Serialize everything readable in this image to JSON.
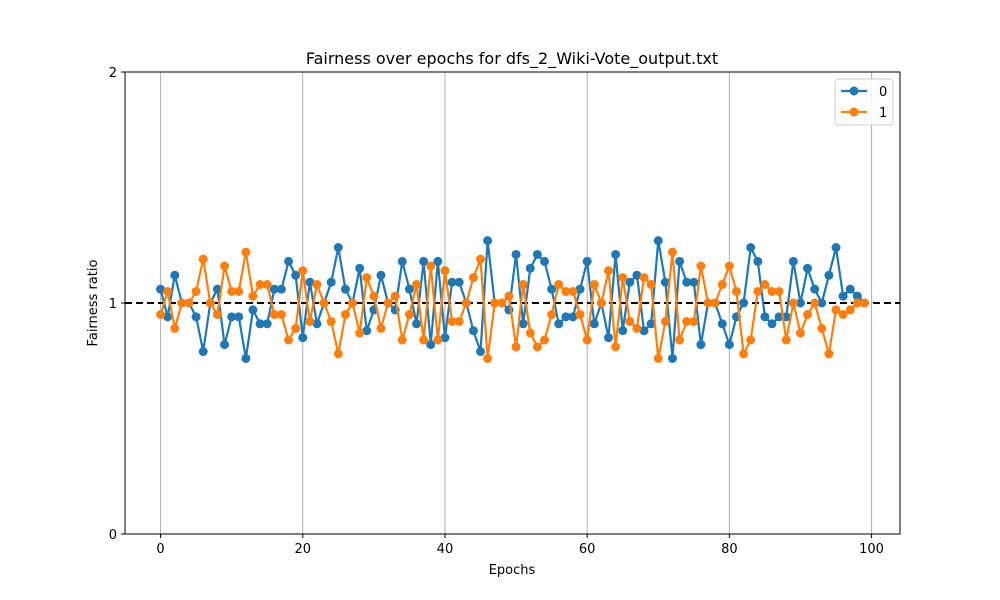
{
  "chart_data": {
    "type": "line",
    "title": "Fairness over epochs for dfs_2_Wiki-Vote_output.txt",
    "xlabel": "Epochs",
    "ylabel": "Fairness ratio",
    "xlim": [
      -5,
      104
    ],
    "ylim": [
      0,
      2
    ],
    "xticks": [
      0,
      20,
      40,
      60,
      80,
      100
    ],
    "yticks": [
      0,
      1,
      2
    ],
    "grid": "vertical",
    "reference_line": {
      "y": 1,
      "style": "dashed",
      "color": "#000000"
    },
    "legend": {
      "placement": "top-right"
    },
    "x": [
      0,
      1,
      2,
      3,
      4,
      5,
      6,
      7,
      8,
      9,
      10,
      11,
      12,
      13,
      14,
      15,
      16,
      17,
      18,
      19,
      20,
      21,
      22,
      23,
      24,
      25,
      26,
      27,
      28,
      29,
      30,
      31,
      32,
      33,
      34,
      35,
      36,
      37,
      38,
      39,
      40,
      41,
      42,
      43,
      44,
      45,
      46,
      47,
      48,
      49,
      50,
      51,
      52,
      53,
      54,
      55,
      56,
      57,
      58,
      59,
      60,
      61,
      62,
      63,
      64,
      65,
      66,
      67,
      68,
      69,
      70,
      71,
      72,
      73,
      74,
      75,
      76,
      77,
      78,
      79,
      80,
      81,
      82,
      83,
      84,
      85,
      86,
      87,
      88,
      89,
      90,
      91,
      92,
      93,
      94,
      95,
      96,
      97,
      98,
      99
    ],
    "series": [
      {
        "name": "0",
        "color": "#1f77b4",
        "values": [
          1.06,
          0.94,
          1.12,
          1.0,
          1.0,
          0.94,
          0.79,
          1.0,
          1.06,
          0.82,
          0.94,
          0.94,
          0.76,
          0.97,
          0.91,
          0.91,
          1.06,
          1.06,
          1.18,
          1.12,
          0.85,
          1.09,
          0.91,
          1.0,
          1.09,
          1.24,
          1.06,
          1.0,
          1.15,
          0.88,
          0.97,
          1.12,
          1.0,
          0.97,
          1.18,
          1.06,
          0.91,
          1.18,
          0.82,
          1.18,
          0.85,
          1.09,
          1.09,
          1.0,
          0.88,
          0.79,
          1.27,
          1.0,
          1.0,
          0.97,
          1.21,
          0.91,
          1.15,
          1.21,
          1.18,
          1.06,
          0.91,
          0.94,
          0.94,
          1.06,
          1.18,
          0.91,
          1.0,
          0.85,
          1.21,
          0.88,
          1.09,
          1.12,
          0.88,
          0.91,
          1.27,
          1.09,
          0.76,
          1.18,
          1.09,
          1.09,
          0.82,
          1.0,
          1.0,
          0.91,
          0.82,
          0.94,
          1.0,
          1.24,
          1.18,
          0.94,
          0.91,
          0.94,
          0.94,
          1.18,
          1.0,
          1.15,
          1.06,
          1.0,
          1.12,
          1.24,
          1.03,
          1.06,
          1.03,
          1.0
        ]
      },
      {
        "name": "1",
        "color": "#ff7f0e",
        "values": [
          0.95,
          1.05,
          0.89,
          1.0,
          1.0,
          1.05,
          1.19,
          1.0,
          0.95,
          1.16,
          1.05,
          1.05,
          1.22,
          1.03,
          1.08,
          1.08,
          0.95,
          0.95,
          0.84,
          0.89,
          1.14,
          0.92,
          1.08,
          1.0,
          0.92,
          0.78,
          0.95,
          1.0,
          0.87,
          1.11,
          1.03,
          0.89,
          1.0,
          1.03,
          0.84,
          0.95,
          1.08,
          0.84,
          1.16,
          0.84,
          1.14,
          0.92,
          0.92,
          1.0,
          1.11,
          1.19,
          0.76,
          1.0,
          1.0,
          1.03,
          0.81,
          1.08,
          0.87,
          0.81,
          0.84,
          0.95,
          1.08,
          1.05,
          1.05,
          0.95,
          0.84,
          1.08,
          1.0,
          1.14,
          0.81,
          1.11,
          0.92,
          0.89,
          1.11,
          1.08,
          0.76,
          0.92,
          1.22,
          0.84,
          0.92,
          0.92,
          1.16,
          1.0,
          1.0,
          1.08,
          1.16,
          1.05,
          0.78,
          0.84,
          1.05,
          1.08,
          1.05,
          1.05,
          0.84,
          1.0,
          0.87,
          0.95,
          1.0,
          0.89,
          0.78,
          0.97,
          0.95,
          0.97,
          1.0,
          1.0
        ]
      }
    ]
  }
}
